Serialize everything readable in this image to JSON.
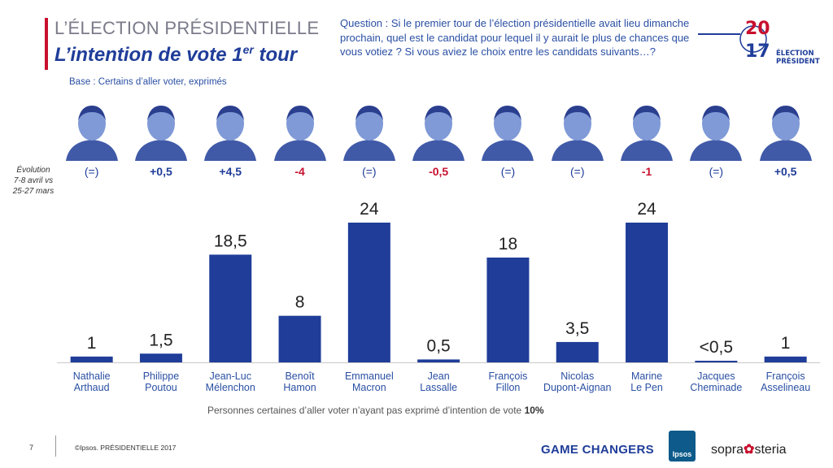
{
  "header": {
    "kicker": "L’ÉLECTION PRÉSIDENTIELLE",
    "title_main": "L’intention de vote 1",
    "title_sup": "er",
    "title_end": " tour",
    "base": "Base : Certains d’aller voter, exprimés",
    "question": "Question : Si le premier tour de l’élection présidentielle avait lieu dimanche prochain, quel est le candidat pour lequel il y aurait le plus de chances que vous votiez ? Si vous aviez le choix entre les candidats suivants…?"
  },
  "logo": {
    "year_top": "20",
    "year_bottom": "17",
    "line1": "ÉLECTION",
    "line2": "PRÉSIDENTIELLE"
  },
  "evolution_label": [
    "Évolution",
    "7-8 avril vs",
    "25-27 mars"
  ],
  "colors": {
    "bar": "#1f3d99",
    "positive": "#1f3d99",
    "negative": "#c8102e",
    "neutral": "#1f3d99",
    "accent": "#c8102e"
  },
  "candidates": [
    {
      "first": "Nathalie",
      "last": "Arthaud",
      "value": 1,
      "label": "1",
      "evolution": "(=)",
      "evo_type": "neutral"
    },
    {
      "first": "Philippe",
      "last": "Poutou",
      "value": 1.5,
      "label": "1,5",
      "evolution": "+0,5",
      "evo_type": "positive"
    },
    {
      "first": "Jean-Luc",
      "last": "Mélenchon",
      "value": 18.5,
      "label": "18,5",
      "evolution": "+4,5",
      "evo_type": "positive"
    },
    {
      "first": "Benoît",
      "last": "Hamon",
      "value": 8,
      "label": "8",
      "evolution": "-4",
      "evo_type": "negative"
    },
    {
      "first": "Emmanuel",
      "last": "Macron",
      "value": 24,
      "label": "24",
      "evolution": "(=)",
      "evo_type": "neutral"
    },
    {
      "first": "Jean",
      "last": "Lassalle",
      "value": 0.5,
      "label": "0,5",
      "evolution": "-0,5",
      "evo_type": "negative"
    },
    {
      "first": "François",
      "last": "Fillon",
      "value": 18,
      "label": "18",
      "evolution": "(=)",
      "evo_type": "neutral"
    },
    {
      "first": "Nicolas",
      "last": "Dupont-Aignan",
      "value": 3.5,
      "label": "3,5",
      "evolution": "(=)",
      "evo_type": "neutral"
    },
    {
      "first": "Marine",
      "last": "Le Pen",
      "value": 24,
      "label": "24",
      "evolution": "-1",
      "evo_type": "negative"
    },
    {
      "first": "Jacques",
      "last": "Cheminade",
      "value": 0.25,
      "label": "<0,5",
      "evolution": "(=)",
      "evo_type": "neutral"
    },
    {
      "first": "François",
      "last": "Asselineau",
      "value": 1,
      "label": "1",
      "evolution": "+0,5",
      "evo_type": "positive"
    }
  ],
  "chart_data": {
    "type": "bar",
    "categories": [
      "Nathalie Arthaud",
      "Philippe Poutou",
      "Jean-Luc Mélenchon",
      "Benoît Hamon",
      "Emmanuel Macron",
      "Jean Lassalle",
      "François Fillon",
      "Nicolas Dupont-Aignan",
      "Marine Le Pen",
      "Jacques Cheminade",
      "François Asselineau"
    ],
    "values": [
      1,
      1.5,
      18.5,
      8,
      24,
      0.5,
      18,
      3.5,
      24,
      0.25,
      1
    ],
    "data_labels": [
      "1",
      "1,5",
      "18,5",
      "8",
      "24",
      "0,5",
      "18",
      "3,5",
      "24",
      "<0,5",
      "1"
    ],
    "title": "L’intention de vote 1er tour",
    "xlabel": "",
    "ylabel": "",
    "ylim": [
      0,
      24
    ],
    "grid": false
  },
  "footnote": {
    "text": "Personnes certaines d’aller voter n’ayant pas exprimé d’intention de vote ",
    "value": "10%"
  },
  "footer": {
    "page": "7",
    "copyright": "©Ipsos.  PRÉSIDENTIELLE 2017",
    "game_changers": "GAME CHANGERS",
    "ipsos": "Ipsos",
    "sopra": "sopra",
    "steria": "steria"
  }
}
